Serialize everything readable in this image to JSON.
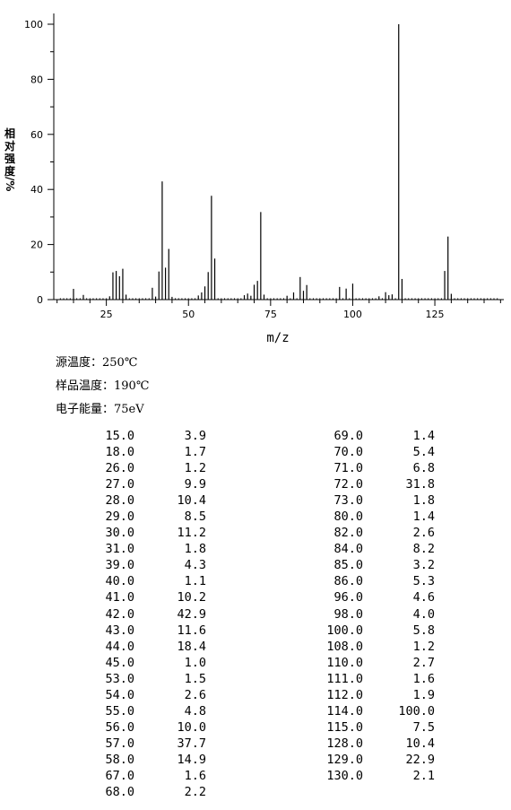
{
  "chart_data": {
    "type": "bar",
    "xlabel": "m/z",
    "ylabel_chars": [
      "相",
      "对",
      "强",
      "度",
      "/%"
    ],
    "xlim": [
      9,
      146
    ],
    "ylim": [
      0,
      100
    ],
    "x_ticks": [
      25,
      50,
      75,
      100,
      125
    ],
    "y_ticks": [
      0,
      20,
      40,
      60,
      80,
      100
    ],
    "grid": false,
    "peaks": [
      {
        "mz": 15,
        "ab": 3.9
      },
      {
        "mz": 18,
        "ab": 1.7
      },
      {
        "mz": 26,
        "ab": 1.2
      },
      {
        "mz": 27,
        "ab": 9.9
      },
      {
        "mz": 28,
        "ab": 10.4
      },
      {
        "mz": 29,
        "ab": 8.5
      },
      {
        "mz": 30,
        "ab": 11.2
      },
      {
        "mz": 31,
        "ab": 1.8
      },
      {
        "mz": 39,
        "ab": 4.3
      },
      {
        "mz": 40,
        "ab": 1.1
      },
      {
        "mz": 41,
        "ab": 10.2
      },
      {
        "mz": 42,
        "ab": 42.9
      },
      {
        "mz": 43,
        "ab": 11.6
      },
      {
        "mz": 44,
        "ab": 18.4
      },
      {
        "mz": 45,
        "ab": 1.0
      },
      {
        "mz": 53,
        "ab": 1.5
      },
      {
        "mz": 54,
        "ab": 2.6
      },
      {
        "mz": 55,
        "ab": 4.8
      },
      {
        "mz": 56,
        "ab": 10.0
      },
      {
        "mz": 57,
        "ab": 37.7
      },
      {
        "mz": 58,
        "ab": 14.9
      },
      {
        "mz": 67,
        "ab": 1.6
      },
      {
        "mz": 68,
        "ab": 2.2
      },
      {
        "mz": 69,
        "ab": 1.4
      },
      {
        "mz": 70,
        "ab": 5.4
      },
      {
        "mz": 71,
        "ab": 6.8
      },
      {
        "mz": 72,
        "ab": 31.8
      },
      {
        "mz": 73,
        "ab": 1.8
      },
      {
        "mz": 80,
        "ab": 1.4
      },
      {
        "mz": 82,
        "ab": 2.6
      },
      {
        "mz": 84,
        "ab": 8.2
      },
      {
        "mz": 85,
        "ab": 3.2
      },
      {
        "mz": 86,
        "ab": 5.3
      },
      {
        "mz": 96,
        "ab": 4.6
      },
      {
        "mz": 98,
        "ab": 4.0
      },
      {
        "mz": 100,
        "ab": 5.8
      },
      {
        "mz": 108,
        "ab": 1.2
      },
      {
        "mz": 110,
        "ab": 2.7
      },
      {
        "mz": 111,
        "ab": 1.6
      },
      {
        "mz": 112,
        "ab": 1.9
      },
      {
        "mz": 114,
        "ab": 100.0
      },
      {
        "mz": 115,
        "ab": 7.5
      },
      {
        "mz": 128,
        "ab": 10.4
      },
      {
        "mz": 129,
        "ab": 22.9
      },
      {
        "mz": 130,
        "ab": 2.1
      }
    ],
    "baseline_noise": [
      11,
      12,
      13,
      14,
      16,
      17,
      19,
      20,
      21,
      22,
      23,
      24,
      25,
      32,
      33,
      34,
      35,
      36,
      37,
      38,
      46,
      47,
      48,
      49,
      50,
      51,
      52,
      59,
      60,
      61,
      62,
      63,
      64,
      65,
      66,
      74,
      75,
      76,
      77,
      78,
      79,
      81,
      83,
      87,
      88,
      89,
      90,
      91,
      92,
      93,
      94,
      95,
      97,
      99,
      101,
      102,
      103,
      104,
      105,
      106,
      107,
      109,
      113,
      116,
      117,
      118,
      119,
      120,
      121,
      122,
      123,
      124,
      125,
      126,
      127,
      131,
      132,
      133,
      134,
      135,
      136,
      137,
      138,
      139,
      140,
      141,
      142,
      143,
      144
    ],
    "baseline_noise_value": 0.5
  },
  "conditions": {
    "source_temp": "源温度：250℃",
    "sample_temp": "样品温度：190℃",
    "electron_energy": "电子能量：75eV"
  },
  "peak_table": {
    "left": [
      [
        "15.0",
        "3.9"
      ],
      [
        "18.0",
        "1.7"
      ],
      [
        "26.0",
        "1.2"
      ],
      [
        "27.0",
        "9.9"
      ],
      [
        "28.0",
        "10.4"
      ],
      [
        "29.0",
        "8.5"
      ],
      [
        "30.0",
        "11.2"
      ],
      [
        "31.0",
        "1.8"
      ],
      [
        "39.0",
        "4.3"
      ],
      [
        "40.0",
        "1.1"
      ],
      [
        "41.0",
        "10.2"
      ],
      [
        "42.0",
        "42.9"
      ],
      [
        "43.0",
        "11.6"
      ],
      [
        "44.0",
        "18.4"
      ],
      [
        "45.0",
        "1.0"
      ],
      [
        "53.0",
        "1.5"
      ],
      [
        "54.0",
        "2.6"
      ],
      [
        "55.0",
        "4.8"
      ],
      [
        "56.0",
        "10.0"
      ],
      [
        "57.0",
        "37.7"
      ],
      [
        "58.0",
        "14.9"
      ],
      [
        "67.0",
        "1.6"
      ],
      [
        "68.0",
        "2.2"
      ]
    ],
    "right": [
      [
        "69.0",
        "1.4"
      ],
      [
        "70.0",
        "5.4"
      ],
      [
        "71.0",
        "6.8"
      ],
      [
        "72.0",
        "31.8"
      ],
      [
        "73.0",
        "1.8"
      ],
      [
        "80.0",
        "1.4"
      ],
      [
        "82.0",
        "2.6"
      ],
      [
        "84.0",
        "8.2"
      ],
      [
        "85.0",
        "3.2"
      ],
      [
        "86.0",
        "5.3"
      ],
      [
        "96.0",
        "4.6"
      ],
      [
        "98.0",
        "4.0"
      ],
      [
        "100.0",
        "5.8"
      ],
      [
        "108.0",
        "1.2"
      ],
      [
        "110.0",
        "2.7"
      ],
      [
        "111.0",
        "1.6"
      ],
      [
        "112.0",
        "1.9"
      ],
      [
        "114.0",
        "100.0"
      ],
      [
        "115.0",
        "7.5"
      ],
      [
        "128.0",
        "10.4"
      ],
      [
        "129.0",
        "22.9"
      ],
      [
        "130.0",
        "2.1"
      ]
    ]
  }
}
